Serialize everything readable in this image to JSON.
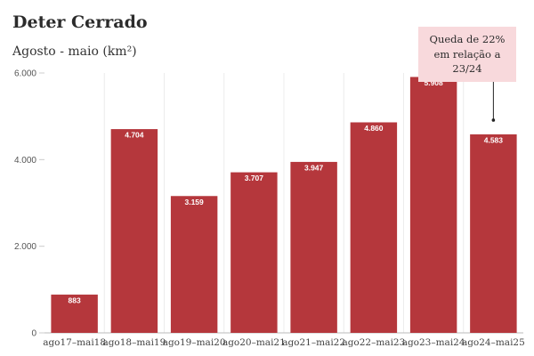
{
  "chart_data": {
    "type": "bar",
    "title": "Deter Cerrado",
    "subtitle": "Agosto - maio (km²)",
    "categories": [
      "ago17–mai18",
      "ago18–mai19",
      "ago19–mai20",
      "ago20–mai21",
      "ago21–mai22",
      "ago22–mai23",
      "ago23–mai24",
      "ago24–mai25"
    ],
    "values": [
      883,
      4704,
      3159,
      3707,
      3947,
      4860,
      5908,
      4583
    ],
    "value_labels": [
      "883",
      "4.704",
      "3.159",
      "3.707",
      "3.947",
      "4.860",
      "5.908",
      "4.583"
    ],
    "ylim": [
      0,
      6000
    ],
    "yticks": [
      0,
      2000,
      4000,
      6000
    ],
    "ytick_labels": [
      "0",
      "2.000",
      "4.000",
      "6.000"
    ],
    "xlabel": "",
    "ylabel": "",
    "grid": "vertical lines",
    "bar_color": "#b5373c",
    "annotation": {
      "text": "Queda de 22% em relação a 23/24",
      "target_category": "ago24–mai25",
      "background": "#f8d9dc"
    }
  }
}
